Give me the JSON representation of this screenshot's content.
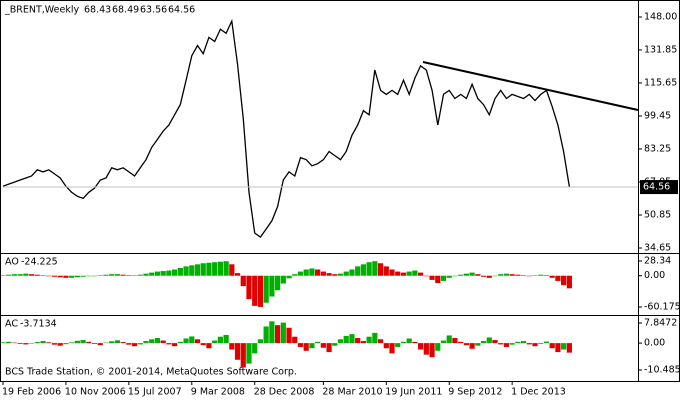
{
  "chart_data": [
    {
      "type": "line",
      "title": "_BRENT,Weekly",
      "ohlc": [
        68.43,
        68.49,
        63.56,
        64.56
      ],
      "color": "#000000",
      "values": [
        65,
        66,
        67,
        68,
        69,
        70,
        73,
        72,
        73,
        71,
        69,
        65,
        62,
        60,
        59,
        62,
        64,
        68,
        69,
        74,
        73,
        74,
        72,
        70,
        74,
        78,
        84,
        88,
        92,
        95,
        100,
        105,
        117,
        129,
        134,
        130,
        138,
        136,
        142,
        140,
        146,
        125,
        98,
        62,
        42,
        40,
        44,
        48,
        55,
        68,
        72,
        70,
        79,
        78,
        75,
        76,
        78,
        82,
        80,
        78,
        82,
        90,
        95,
        102,
        100,
        122,
        112,
        110,
        112,
        110,
        117,
        110,
        118,
        124,
        122,
        112,
        95,
        110,
        112,
        108,
        110,
        108,
        115,
        108,
        105,
        100,
        108,
        112,
        108,
        110,
        109,
        108,
        110,
        107,
        110,
        112,
        104,
        95,
        82,
        64.56
      ],
      "ylim": [
        32.69,
        155.36
      ],
      "yticks": [
        {
          "value": 148,
          "label": "148.00"
        },
        131.85,
        115.65,
        99.45,
        83.25,
        67.05,
        50.85,
        34.65
      ],
      "xlim": [
        0,
        111
      ],
      "xticks": [
        {
          "value": 0,
          "label": "19 Feb 2006"
        },
        {
          "value": 11,
          "label": "10 Nov 2006"
        },
        {
          "value": 22,
          "label": "15 Jul 2007"
        },
        {
          "value": 33,
          "label": "9 Mar 2008"
        },
        {
          "value": 44,
          "label": "28 Dec 2008"
        },
        {
          "value": 56,
          "label": "28 Mar 2010"
        },
        {
          "value": 67,
          "label": "19 Jun 2011"
        },
        {
          "value": 78,
          "label": "9 Sep 2012"
        },
        {
          "value": 89,
          "label": "1 Dec 2013"
        }
      ]
    },
    {
      "type": "bar",
      "title": "AO",
      "up_color": "#00b000",
      "down_color": "#e00000",
      "values": [
        1,
        2,
        3,
        3,
        4,
        3,
        2,
        1,
        -1,
        -2,
        -3,
        -4,
        -4,
        -3,
        -2,
        -1,
        0,
        1,
        2,
        3,
        3,
        2,
        1,
        1,
        2,
        4,
        6,
        8,
        9,
        10,
        12,
        15,
        18,
        20,
        22,
        24,
        25,
        26,
        27,
        28,
        22,
        5,
        -20,
        -45,
        -58,
        -60,
        -52,
        -40,
        -28,
        -15,
        -5,
        3,
        8,
        12,
        14,
        12,
        8,
        5,
        3,
        4,
        8,
        12,
        18,
        22,
        26,
        28,
        24,
        18,
        12,
        8,
        6,
        8,
        10,
        6,
        0,
        -8,
        -14,
        -10,
        -4,
        0,
        2,
        4,
        6,
        3,
        -2,
        -4,
        0,
        3,
        4,
        3,
        2,
        1,
        0,
        1,
        2,
        1,
        -4,
        -10,
        -18,
        -24.225
      ],
      "ylim": [
        -71.72,
        39.89
      ],
      "yticks": [
        28.34,
        {
          "value": 0,
          "label": "0.00"
        },
        -60.175
      ]
    },
    {
      "type": "bar",
      "title": "AC",
      "up_color": "#00b000",
      "down_color": "#e00000",
      "caption": "BCS Trade Station, © 2001-2014, MetaQuotes Software Corp.",
      "values": [
        0.3,
        0.5,
        0.2,
        -0.3,
        -0.5,
        -0.2,
        0.4,
        0.8,
        0.3,
        -0.6,
        -1.0,
        -0.4,
        0.3,
        0.9,
        1.2,
        0.5,
        -0.3,
        -0.8,
        0.2,
        0.7,
        1.1,
        0.4,
        -0.6,
        -1.2,
        -0.5,
        0.8,
        1.5,
        2.0,
        1.0,
        -0.5,
        -1.2,
        0.5,
        1.8,
        2.6,
        1.5,
        -0.8,
        -2.0,
        1.0,
        2.5,
        3.2,
        -2.5,
        -6.5,
        -9.5,
        -8.0,
        -4.0,
        1.5,
        6.5,
        8.5,
        7.0,
        8.0,
        6.0,
        2.5,
        -1.5,
        -3.0,
        -2.0,
        0.5,
        -1.8,
        -3.5,
        -1.0,
        1.5,
        2.8,
        3.5,
        2.0,
        0.8,
        2.5,
        4.0,
        1.5,
        -2.0,
        -4.0,
        -1.5,
        0.5,
        1.8,
        0.5,
        -2.5,
        -4.5,
        -5.5,
        -3.0,
        1.0,
        3.0,
        2.0,
        0.5,
        -0.8,
        -2.2,
        -1.0,
        0.8,
        2.2,
        1.2,
        -0.5,
        -1.5,
        -0.6,
        0.5,
        0.8,
        -0.5,
        -1.2,
        -0.3,
        0.6,
        -2.0,
        -3.5,
        -2.5,
        -3.7134
      ],
      "ylim": [
        -14.0,
        10.19
      ],
      "yticks": [
        7.8472,
        {
          "value": 0,
          "label": "0.00"
        },
        -10.4855
      ]
    }
  ]
}
